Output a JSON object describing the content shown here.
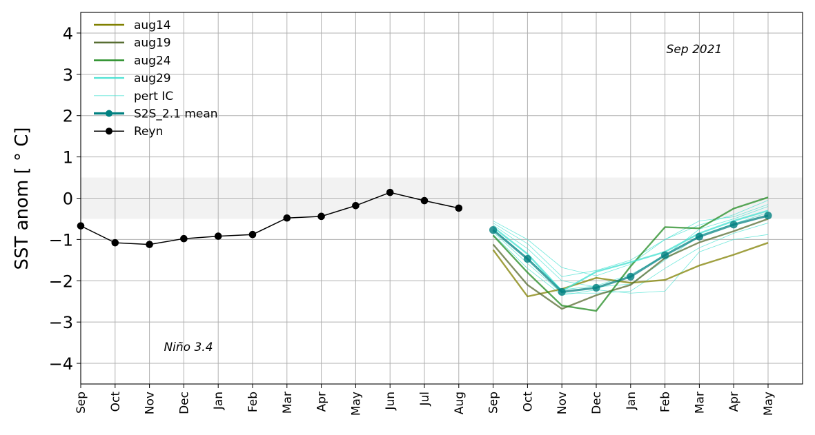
{
  "chart_data": {
    "type": "line",
    "ylabel": "SST anom [$^\\circ$C]",
    "ylabel_display": "SST anom [ ° C]",
    "ylim": [
      -4.5,
      4.5
    ],
    "yticks": [
      4,
      3,
      2,
      1,
      0,
      -1,
      -2,
      -3,
      -4
    ],
    "ytick_labels": [
      "4",
      "3",
      "2",
      "1",
      "0",
      "−1",
      "−2",
      "−3",
      "−4"
    ],
    "xticks": [
      "Sep",
      "Oct",
      "Nov",
      "Dec",
      "Jan",
      "Feb",
      "Mar",
      "Apr",
      "May",
      "Jun",
      "Jul",
      "Aug",
      "Sep",
      "Oct",
      "Nov",
      "Dec",
      "Jan",
      "Feb",
      "Mar",
      "Apr",
      "May"
    ],
    "xlim_index": [
      0,
      21
    ],
    "neutral_band": [
      -0.5,
      0.5
    ],
    "grid": true,
    "legend_position": "top-left",
    "annotations": {
      "top_right": "Sep 2021",
      "bottom_left": "Niño 3.4"
    },
    "series": [
      {
        "name": "aug14",
        "color": "#808000",
        "x": [
          12,
          13,
          14,
          15,
          16,
          17,
          18,
          19,
          20
        ],
        "values": [
          -1.25,
          -2.38,
          -2.2,
          -1.93,
          -2.05,
          -1.98,
          -1.63,
          -1.37,
          -1.08
        ]
      },
      {
        "name": "aug19",
        "color": "#556b2f",
        "x": [
          12,
          13,
          14,
          15,
          16,
          17,
          18,
          19,
          20
        ],
        "values": [
          -1.12,
          -2.1,
          -2.68,
          -2.35,
          -2.1,
          -1.45,
          -1.07,
          -0.8,
          -0.5
        ]
      },
      {
        "name": "aug24",
        "color": "#228b22",
        "x": [
          12,
          13,
          14,
          15,
          16,
          17,
          18,
          19,
          20
        ],
        "values": [
          -0.9,
          -1.8,
          -2.6,
          -2.73,
          -1.65,
          -0.7,
          -0.73,
          -0.25,
          0.02
        ]
      },
      {
        "name": "aug29",
        "color": "#40e0d0",
        "x": [
          12,
          13,
          14,
          15,
          16,
          17,
          18,
          19,
          20
        ],
        "values": [
          -0.7,
          -1.35,
          -2.25,
          -1.78,
          -1.55,
          -1.3,
          -0.85,
          -0.55,
          -0.3
        ]
      },
      {
        "name": "pert IC",
        "color": "#40e0d0",
        "thin": true,
        "members": [
          {
            "x": [
              12,
              13,
              14,
              15,
              16,
              17,
              18,
              19,
              20
            ],
            "values": [
              -0.55,
              -1.0,
              -1.68,
              -1.88,
              -1.6,
              -1.0,
              -0.55,
              -0.45,
              -0.15
            ]
          },
          {
            "x": [
              12,
              13,
              14,
              15,
              16,
              17,
              18,
              19,
              20
            ],
            "values": [
              -0.65,
              -1.22,
              -2.0,
              -2.15,
              -2.08,
              -1.5,
              -0.9,
              -0.62,
              -0.35
            ]
          },
          {
            "x": [
              12,
              13,
              14,
              15,
              16,
              17,
              18,
              19,
              20
            ],
            "values": [
              -0.75,
              -1.45,
              -2.22,
              -2.12,
              -1.85,
              -1.4,
              -0.75,
              -0.5,
              -0.2
            ]
          },
          {
            "x": [
              12,
              13,
              14,
              15,
              16,
              17,
              18,
              19,
              20
            ],
            "values": [
              -0.82,
              -1.58,
              -2.3,
              -2.3,
              -2.25,
              -1.7,
              -1.2,
              -0.85,
              -0.6
            ]
          },
          {
            "x": [
              12,
              13,
              14,
              15,
              16,
              17,
              18,
              19,
              20
            ],
            "values": [
              -0.88,
              -1.7,
              -2.35,
              -2.22,
              -2.3,
              -2.25,
              -1.3,
              -1.0,
              -0.88
            ]
          },
          {
            "x": [
              12,
              13,
              14,
              15,
              16,
              17,
              18,
              19,
              20
            ],
            "values": [
              -0.6,
              -1.1,
              -1.9,
              -1.75,
              -1.5,
              -1.0,
              -0.65,
              -0.4,
              -0.05
            ]
          }
        ]
      },
      {
        "name": "S2S_2.1 mean",
        "color": "#008080",
        "x": [
          12,
          13,
          14,
          15,
          16,
          17,
          18,
          19,
          20
        ],
        "values": [
          -0.77,
          -1.47,
          -2.27,
          -2.17,
          -1.9,
          -1.38,
          -0.93,
          -0.64,
          -0.42
        ]
      },
      {
        "name": "Reyn",
        "color": "#000000",
        "x": [
          0,
          1,
          2,
          3,
          4,
          5,
          6,
          7,
          8,
          9,
          10,
          11
        ],
        "values": [
          -0.67,
          -1.08,
          -1.12,
          -0.98,
          -0.92,
          -0.88,
          -0.48,
          -0.44,
          -0.18,
          0.14,
          -0.06,
          -0.24
        ]
      }
    ]
  }
}
